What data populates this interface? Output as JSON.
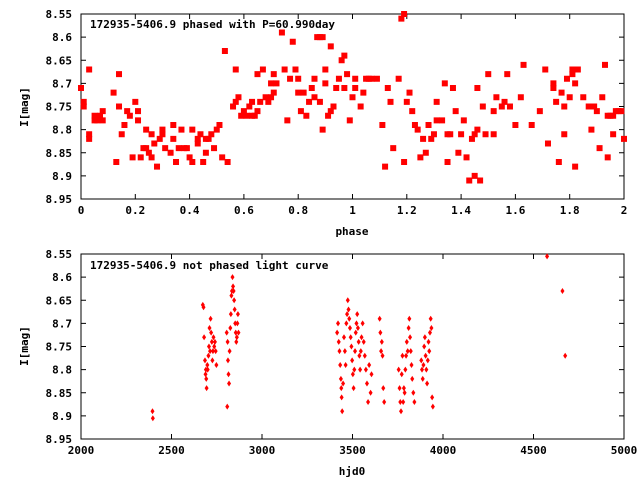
{
  "chart_data": [
    {
      "type": "scatter",
      "title": "172935-5406.9 phased with P=60.990day",
      "xlabel": "phase",
      "ylabel": "I[mag]",
      "xlim": [
        0,
        2
      ],
      "ylim": [
        8.95,
        8.55
      ],
      "y_inverted": true,
      "grid": false,
      "marker": "filled-square",
      "marker_color": "#ff0000",
      "xticks": [
        "0",
        "0.2",
        "0.4",
        "0.6",
        "0.8",
        "1",
        "1.2",
        "1.4",
        "1.6",
        "1.8",
        "2"
      ],
      "yticks": [
        "8.55",
        "8.6",
        "8.65",
        "8.7",
        "8.75",
        "8.8",
        "8.85",
        "8.9",
        "8.95"
      ],
      "points": [
        [
          0.0,
          8.71
        ],
        [
          0.01,
          8.74
        ],
        [
          0.01,
          8.75
        ],
        [
          0.03,
          8.82
        ],
        [
          0.03,
          8.81
        ],
        [
          0.03,
          8.67
        ],
        [
          0.05,
          8.78
        ],
        [
          0.05,
          8.77
        ],
        [
          0.06,
          8.78
        ],
        [
          0.07,
          8.77
        ],
        [
          0.08,
          8.78
        ],
        [
          0.08,
          8.76
        ],
        [
          0.12,
          8.72
        ],
        [
          0.13,
          8.87
        ],
        [
          0.14,
          8.75
        ],
        [
          0.14,
          8.68
        ],
        [
          0.15,
          8.81
        ],
        [
          0.16,
          8.79
        ],
        [
          0.17,
          8.76
        ],
        [
          0.18,
          8.77
        ],
        [
          0.19,
          8.86
        ],
        [
          0.2,
          8.74
        ],
        [
          0.21,
          8.78
        ],
        [
          0.21,
          8.76
        ],
        [
          0.22,
          8.86
        ],
        [
          0.23,
          8.84
        ],
        [
          0.24,
          8.8
        ],
        [
          0.24,
          8.84
        ],
        [
          0.25,
          8.85
        ],
        [
          0.26,
          8.86
        ],
        [
          0.26,
          8.81
        ],
        [
          0.27,
          8.83
        ],
        [
          0.28,
          8.88
        ],
        [
          0.29,
          8.82
        ],
        [
          0.3,
          8.81
        ],
        [
          0.3,
          8.8
        ],
        [
          0.31,
          8.84
        ],
        [
          0.33,
          8.85
        ],
        [
          0.34,
          8.82
        ],
        [
          0.34,
          8.79
        ],
        [
          0.35,
          8.87
        ],
        [
          0.36,
          8.84
        ],
        [
          0.37,
          8.8
        ],
        [
          0.38,
          8.84
        ],
        [
          0.39,
          8.84
        ],
        [
          0.4,
          8.86
        ],
        [
          0.41,
          8.8
        ],
        [
          0.41,
          8.87
        ],
        [
          0.43,
          8.82
        ],
        [
          0.43,
          8.83
        ],
        [
          0.44,
          8.81
        ],
        [
          0.45,
          8.87
        ],
        [
          0.46,
          8.85
        ],
        [
          0.46,
          8.82
        ],
        [
          0.47,
          8.82
        ],
        [
          0.48,
          8.81
        ],
        [
          0.49,
          8.84
        ],
        [
          0.5,
          8.8
        ],
        [
          0.51,
          8.79
        ],
        [
          0.52,
          8.86
        ],
        [
          0.53,
          8.63
        ],
        [
          0.54,
          8.87
        ],
        [
          0.56,
          8.75
        ],
        [
          0.57,
          8.74
        ],
        [
          0.57,
          8.67
        ],
        [
          0.58,
          8.73
        ],
        [
          0.59,
          8.77
        ],
        [
          0.6,
          8.76
        ],
        [
          0.61,
          8.77
        ],
        [
          0.62,
          8.75
        ],
        [
          0.63,
          8.74
        ],
        [
          0.63,
          8.77
        ],
        [
          0.64,
          8.77
        ],
        [
          0.65,
          8.76
        ],
        [
          0.65,
          8.68
        ],
        [
          0.66,
          8.74
        ],
        [
          0.67,
          8.67
        ],
        [
          0.68,
          8.73
        ],
        [
          0.69,
          8.74
        ],
        [
          0.7,
          8.73
        ],
        [
          0.7,
          8.7
        ],
        [
          0.71,
          8.72
        ],
        [
          0.71,
          8.68
        ],
        [
          0.72,
          8.7
        ],
        [
          0.74,
          8.59
        ],
        [
          0.75,
          8.67
        ],
        [
          0.76,
          8.78
        ],
        [
          0.77,
          8.69
        ],
        [
          0.78,
          8.61
        ],
        [
          0.79,
          8.67
        ],
        [
          0.8,
          8.72
        ],
        [
          0.8,
          8.69
        ],
        [
          0.81,
          8.76
        ],
        [
          0.82,
          8.72
        ],
        [
          0.83,
          8.77
        ],
        [
          0.84,
          8.74
        ],
        [
          0.85,
          8.71
        ],
        [
          0.86,
          8.69
        ],
        [
          0.86,
          8.73
        ],
        [
          0.87,
          8.6
        ],
        [
          0.88,
          8.6
        ],
        [
          0.88,
          8.74
        ],
        [
          0.89,
          8.8
        ],
        [
          0.89,
          8.6
        ],
        [
          0.9,
          8.67
        ],
        [
          0.9,
          8.7
        ],
        [
          0.91,
          8.77
        ],
        [
          0.92,
          8.62
        ],
        [
          0.92,
          8.76
        ],
        [
          0.93,
          8.75
        ],
        [
          0.94,
          8.71
        ],
        [
          0.95,
          8.69
        ],
        [
          0.96,
          8.65
        ],
        [
          0.97,
          8.64
        ],
        [
          0.97,
          8.71
        ],
        [
          0.98,
          8.68
        ],
        [
          0.99,
          8.78
        ],
        [
          1.0,
          8.73
        ],
        [
          1.01,
          8.71
        ],
        [
          1.01,
          8.69
        ],
        [
          1.03,
          8.75
        ],
        [
          1.04,
          8.72
        ],
        [
          1.05,
          8.69
        ],
        [
          1.06,
          8.69
        ],
        [
          1.07,
          8.69
        ],
        [
          1.09,
          8.69
        ],
        [
          1.11,
          8.79
        ],
        [
          1.12,
          8.88
        ],
        [
          1.13,
          8.71
        ],
        [
          1.14,
          8.74
        ],
        [
          1.15,
          8.84
        ],
        [
          1.17,
          8.69
        ],
        [
          1.18,
          8.56
        ],
        [
          1.19,
          8.55
        ],
        [
          1.19,
          8.87
        ],
        [
          1.2,
          8.74
        ],
        [
          1.21,
          8.72
        ],
        [
          1.22,
          8.76
        ],
        [
          1.23,
          8.79
        ],
        [
          1.24,
          8.8
        ],
        [
          1.25,
          8.86
        ],
        [
          1.26,
          8.82
        ],
        [
          1.27,
          8.85
        ],
        [
          1.28,
          8.79
        ],
        [
          1.29,
          8.82
        ],
        [
          1.3,
          8.81
        ],
        [
          1.31,
          8.74
        ],
        [
          1.31,
          8.78
        ],
        [
          1.33,
          8.78
        ],
        [
          1.34,
          8.7
        ],
        [
          1.35,
          8.87
        ],
        [
          1.35,
          8.81
        ],
        [
          1.36,
          8.81
        ],
        [
          1.37,
          8.71
        ],
        [
          1.38,
          8.76
        ],
        [
          1.39,
          8.85
        ],
        [
          1.4,
          8.81
        ],
        [
          1.41,
          8.78
        ],
        [
          1.42,
          8.86
        ],
        [
          1.43,
          8.91
        ],
        [
          1.44,
          8.82
        ],
        [
          1.45,
          8.9
        ],
        [
          1.45,
          8.81
        ],
        [
          1.46,
          8.8
        ],
        [
          1.46,
          8.71
        ],
        [
          1.47,
          8.91
        ],
        [
          1.48,
          8.75
        ],
        [
          1.49,
          8.81
        ],
        [
          1.5,
          8.68
        ],
        [
          1.52,
          8.76
        ],
        [
          1.52,
          8.81
        ],
        [
          1.53,
          8.73
        ],
        [
          1.55,
          8.75
        ],
        [
          1.56,
          8.74
        ],
        [
          1.57,
          8.68
        ],
        [
          1.58,
          8.75
        ],
        [
          1.6,
          8.79
        ],
        [
          1.62,
          8.73
        ],
        [
          1.63,
          8.66
        ],
        [
          1.66,
          8.79
        ],
        [
          1.69,
          8.76
        ],
        [
          1.71,
          8.67
        ],
        [
          1.72,
          8.83
        ],
        [
          1.74,
          8.7
        ],
        [
          1.74,
          8.71
        ],
        [
          1.75,
          8.74
        ],
        [
          1.76,
          8.87
        ],
        [
          1.77,
          8.72
        ],
        [
          1.78,
          8.81
        ],
        [
          1.78,
          8.75
        ],
        [
          1.79,
          8.69
        ],
        [
          1.8,
          8.73
        ],
        [
          1.81,
          8.68
        ],
        [
          1.81,
          8.67
        ],
        [
          1.82,
          8.7
        ],
        [
          1.82,
          8.88
        ],
        [
          1.83,
          8.67
        ],
        [
          1.85,
          8.73
        ],
        [
          1.87,
          8.75
        ],
        [
          1.88,
          8.8
        ],
        [
          1.89,
          8.75
        ],
        [
          1.9,
          8.76
        ],
        [
          1.91,
          8.84
        ],
        [
          1.92,
          8.73
        ],
        [
          1.93,
          8.66
        ],
        [
          1.94,
          8.77
        ],
        [
          1.94,
          8.86
        ],
        [
          1.95,
          8.77
        ],
        [
          1.96,
          8.81
        ],
        [
          1.96,
          8.77
        ],
        [
          1.97,
          8.76
        ],
        [
          1.98,
          8.76
        ],
        [
          1.99,
          8.76
        ],
        [
          2.0,
          8.82
        ]
      ]
    },
    {
      "type": "scatter",
      "title": "172935-5406.9 not phased light curve",
      "xlabel": "hjd0",
      "ylabel": "I[mag]",
      "xlim": [
        2000,
        5000
      ],
      "ylim": [
        8.95,
        8.55
      ],
      "y_inverted": true,
      "grid": false,
      "marker": "filled-diamond",
      "marker_color": "#ff0000",
      "xticks": [
        "2000",
        "2500",
        "3000",
        "3500",
        "4000",
        "4500",
        "5000"
      ],
      "yticks": [
        "8.55",
        "8.6",
        "8.65",
        "8.7",
        "8.75",
        "8.8",
        "8.85",
        "8.9",
        "8.95"
      ],
      "points": [
        [
          2395,
          8.89
        ],
        [
          2397,
          8.905
        ],
        [
          2673,
          8.66
        ],
        [
          2677,
          8.665
        ],
        [
          2680,
          8.73
        ],
        [
          2685,
          8.78
        ],
        [
          2688,
          8.81
        ],
        [
          2690,
          8.8
        ],
        [
          2692,
          8.82
        ],
        [
          2694,
          8.84
        ],
        [
          2698,
          8.79
        ],
        [
          2700,
          8.8
        ],
        [
          2704,
          8.77
        ],
        [
          2707,
          8.75
        ],
        [
          2710,
          8.71
        ],
        [
          2713,
          8.76
        ],
        [
          2716,
          8.69
        ],
        [
          2719,
          8.72
        ],
        [
          2723,
          8.74
        ],
        [
          2726,
          8.78
        ],
        [
          2729,
          8.76
        ],
        [
          2732,
          8.73
        ],
        [
          2736,
          8.75
        ],
        [
          2740,
          8.74
        ],
        [
          2744,
          8.76
        ],
        [
          2748,
          8.79
        ],
        [
          2805,
          8.72
        ],
        [
          2808,
          8.88
        ],
        [
          2810,
          8.74
        ],
        [
          2812,
          8.78
        ],
        [
          2815,
          8.81
        ],
        [
          2818,
          8.83
        ],
        [
          2821,
          8.76
        ],
        [
          2825,
          8.71
        ],
        [
          2828,
          8.68
        ],
        [
          2831,
          8.64
        ],
        [
          2834,
          8.63
        ],
        [
          2837,
          8.6
        ],
        [
          2840,
          8.62
        ],
        [
          2843,
          8.63
        ],
        [
          2846,
          8.65
        ],
        [
          2849,
          8.67
        ],
        [
          2852,
          8.7
        ],
        [
          2855,
          8.72
        ],
        [
          2858,
          8.74
        ],
        [
          2861,
          8.73
        ],
        [
          2864,
          8.7
        ],
        [
          2867,
          8.68
        ],
        [
          2870,
          8.72
        ],
        [
          3415,
          8.72
        ],
        [
          3420,
          8.7
        ],
        [
          3424,
          8.74
        ],
        [
          3428,
          8.76
        ],
        [
          3432,
          8.79
        ],
        [
          3436,
          8.82
        ],
        [
          3438,
          8.84
        ],
        [
          3440,
          8.86
        ],
        [
          3443,
          8.89
        ],
        [
          3448,
          8.83
        ],
        [
          3453,
          8.73
        ],
        [
          3458,
          8.76
        ],
        [
          3462,
          8.79
        ],
        [
          3466,
          8.7
        ],
        [
          3470,
          8.68
        ],
        [
          3474,
          8.65
        ],
        [
          3478,
          8.67
        ],
        [
          3482,
          8.69
        ],
        [
          3486,
          8.71
        ],
        [
          3490,
          8.73
        ],
        [
          3494,
          8.75
        ],
        [
          3498,
          8.78
        ],
        [
          3502,
          8.81
        ],
        [
          3506,
          8.84
        ],
        [
          3510,
          8.8
        ],
        [
          3514,
          8.76
        ],
        [
          3518,
          8.72
        ],
        [
          3522,
          8.7
        ],
        [
          3526,
          8.68
        ],
        [
          3530,
          8.71
        ],
        [
          3534,
          8.74
        ],
        [
          3538,
          8.77
        ],
        [
          3542,
          8.8
        ],
        [
          3546,
          8.76
        ],
        [
          3550,
          8.73
        ],
        [
          3556,
          8.7
        ],
        [
          3562,
          8.74
        ],
        [
          3568,
          8.77
        ],
        [
          3574,
          8.8
        ],
        [
          3580,
          8.83
        ],
        [
          3586,
          8.87
        ],
        [
          3592,
          8.79
        ],
        [
          3600,
          8.85
        ],
        [
          3605,
          8.81
        ],
        [
          3650,
          8.69
        ],
        [
          3654,
          8.72
        ],
        [
          3658,
          8.76
        ],
        [
          3662,
          8.74
        ],
        [
          3666,
          8.77
        ],
        [
          3670,
          8.84
        ],
        [
          3675,
          8.87
        ],
        [
          3755,
          8.8
        ],
        [
          3760,
          8.84
        ],
        [
          3764,
          8.87
        ],
        [
          3768,
          8.89
        ],
        [
          3772,
          8.81
        ],
        [
          3776,
          8.77
        ],
        [
          3780,
          8.87
        ],
        [
          3784,
          8.84
        ],
        [
          3788,
          8.85
        ],
        [
          3792,
          8.8
        ],
        [
          3796,
          8.77
        ],
        [
          3800,
          8.74
        ],
        [
          3805,
          8.76
        ],
        [
          3810,
          8.71
        ],
        [
          3814,
          8.69
        ],
        [
          3818,
          8.73
        ],
        [
          3822,
          8.76
        ],
        [
          3826,
          8.79
        ],
        [
          3830,
          8.82
        ],
        [
          3836,
          8.85
        ],
        [
          3842,
          8.87
        ],
        [
          3880,
          8.78
        ],
        [
          3884,
          8.8
        ],
        [
          3888,
          8.82
        ],
        [
          3892,
          8.79
        ],
        [
          3896,
          8.75
        ],
        [
          3900,
          8.73
        ],
        [
          3904,
          8.77
        ],
        [
          3908,
          8.8
        ],
        [
          3912,
          8.83
        ],
        [
          3916,
          8.78
        ],
        [
          3920,
          8.74
        ],
        [
          3924,
          8.76
        ],
        [
          3928,
          8.72
        ],
        [
          3932,
          8.69
        ],
        [
          3936,
          8.71
        ],
        [
          3940,
          8.86
        ],
        [
          3944,
          8.88
        ],
        [
          4575,
          8.555
        ],
        [
          4660,
          8.63
        ],
        [
          4675,
          8.77
        ]
      ]
    }
  ]
}
